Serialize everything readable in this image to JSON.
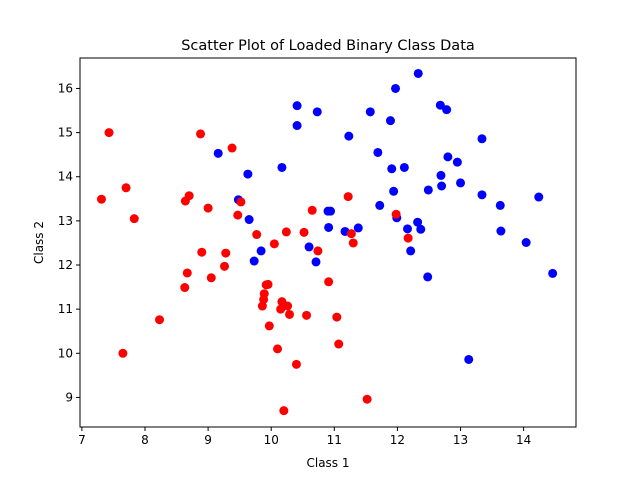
{
  "chart_data": {
    "type": "scatter",
    "title": "Scatter Plot of Loaded Binary Class Data",
    "xlabel": "Class 1",
    "ylabel": "Class 2",
    "xlim": [
      6.97,
      14.83
    ],
    "ylim": [
      8.33,
      16.69
    ],
    "xticks": [
      7,
      8,
      9,
      10,
      11,
      12,
      13,
      14
    ],
    "yticks": [
      9,
      10,
      11,
      12,
      13,
      14,
      15,
      16
    ],
    "grid": false,
    "series": [
      {
        "color": "#0000ff",
        "points": [
          [
            9.16,
            14.53
          ],
          [
            9.48,
            13.48
          ],
          [
            9.63,
            14.06
          ],
          [
            9.65,
            13.03
          ],
          [
            9.73,
            12.09
          ],
          [
            9.84,
            12.32
          ],
          [
            10.17,
            14.21
          ],
          [
            10.41,
            15.61
          ],
          [
            10.41,
            15.16
          ],
          [
            10.6,
            12.41
          ],
          [
            10.71,
            12.07
          ],
          [
            10.73,
            15.47
          ],
          [
            10.9,
            13.22
          ],
          [
            10.91,
            12.85
          ],
          [
            10.94,
            13.22
          ],
          [
            11.17,
            12.76
          ],
          [
            11.23,
            14.92
          ],
          [
            11.38,
            12.84
          ],
          [
            11.57,
            15.47
          ],
          [
            11.69,
            14.55
          ],
          [
            11.72,
            13.35
          ],
          [
            11.89,
            15.27
          ],
          [
            11.91,
            14.18
          ],
          [
            11.94,
            13.67
          ],
          [
            11.97,
            16.0
          ],
          [
            11.99,
            13.07
          ],
          [
            12.11,
            14.21
          ],
          [
            12.16,
            12.82
          ],
          [
            12.21,
            12.32
          ],
          [
            12.32,
            12.97
          ],
          [
            12.33,
            16.34
          ],
          [
            12.37,
            12.81
          ],
          [
            12.48,
            11.73
          ],
          [
            12.49,
            13.7
          ],
          [
            12.68,
            15.62
          ],
          [
            12.69,
            14.03
          ],
          [
            12.7,
            13.79
          ],
          [
            12.78,
            15.52
          ],
          [
            12.8,
            14.45
          ],
          [
            12.95,
            14.33
          ],
          [
            13.0,
            13.86
          ],
          [
            13.13,
            9.86
          ],
          [
            13.34,
            14.86
          ],
          [
            13.34,
            13.59
          ],
          [
            13.63,
            13.35
          ],
          [
            13.64,
            12.77
          ],
          [
            14.04,
            12.51
          ],
          [
            14.24,
            13.54
          ],
          [
            14.46,
            11.81
          ]
        ]
      },
      {
        "color": "#ff0000",
        "points": [
          [
            7.31,
            13.49
          ],
          [
            7.43,
            15.0
          ],
          [
            7.65,
            10.0
          ],
          [
            7.7,
            13.75
          ],
          [
            7.83,
            13.05
          ],
          [
            8.23,
            10.76
          ],
          [
            8.63,
            11.49
          ],
          [
            8.64,
            13.45
          ],
          [
            8.67,
            11.82
          ],
          [
            8.7,
            13.57
          ],
          [
            8.88,
            14.97
          ],
          [
            8.9,
            12.29
          ],
          [
            9.0,
            13.29
          ],
          [
            9.05,
            11.71
          ],
          [
            9.26,
            11.97
          ],
          [
            9.28,
            12.27
          ],
          [
            9.38,
            14.65
          ],
          [
            9.47,
            13.13
          ],
          [
            9.52,
            13.43
          ],
          [
            9.77,
            12.69
          ],
          [
            9.86,
            11.07
          ],
          [
            9.88,
            11.22
          ],
          [
            9.89,
            11.35
          ],
          [
            9.92,
            11.55
          ],
          [
            9.95,
            11.56
          ],
          [
            9.97,
            10.62
          ],
          [
            10.05,
            12.48
          ],
          [
            10.1,
            10.1
          ],
          [
            10.15,
            11.0
          ],
          [
            10.17,
            11.17
          ],
          [
            10.2,
            8.7
          ],
          [
            10.24,
            12.75
          ],
          [
            10.26,
            11.07
          ],
          [
            10.29,
            10.88
          ],
          [
            10.4,
            9.75
          ],
          [
            10.52,
            12.74
          ],
          [
            10.56,
            10.86
          ],
          [
            10.65,
            13.24
          ],
          [
            10.74,
            12.32
          ],
          [
            10.91,
            11.62
          ],
          [
            11.04,
            10.82
          ],
          [
            11.07,
            10.21
          ],
          [
            11.22,
            13.55
          ],
          [
            11.27,
            12.71
          ],
          [
            11.3,
            12.5
          ],
          [
            11.52,
            8.96
          ],
          [
            11.98,
            13.15
          ],
          [
            12.17,
            12.61
          ]
        ]
      }
    ]
  }
}
